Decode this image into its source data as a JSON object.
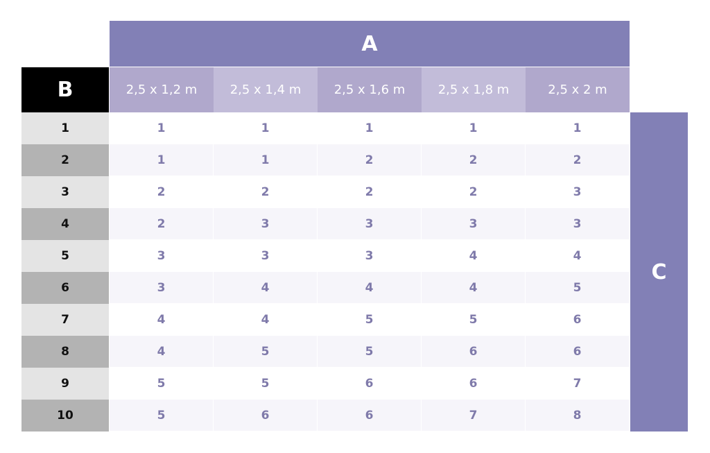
{
  "labels": {
    "a": "A",
    "b": "B",
    "c": "C"
  },
  "columns": [
    "2,5 x 1,2 m",
    "2,5 x 1,4 m",
    "2,5 x 1,6 m",
    "2,5 x 1,8 m",
    "2,5 x 2 m"
  ],
  "rows": [
    {
      "label": "1",
      "values": [
        "1",
        "1",
        "1",
        "1",
        "1"
      ]
    },
    {
      "label": "2",
      "values": [
        "1",
        "1",
        "2",
        "2",
        "2"
      ]
    },
    {
      "label": "3",
      "values": [
        "2",
        "2",
        "2",
        "2",
        "3"
      ]
    },
    {
      "label": "4",
      "values": [
        "2",
        "3",
        "3",
        "3",
        "3"
      ]
    },
    {
      "label": "5",
      "values": [
        "3",
        "3",
        "3",
        "4",
        "4"
      ]
    },
    {
      "label": "6",
      "values": [
        "3",
        "4",
        "4",
        "4",
        "5"
      ]
    },
    {
      "label": "7",
      "values": [
        "4",
        "4",
        "5",
        "5",
        "6"
      ]
    },
    {
      "label": "8",
      "values": [
        "4",
        "5",
        "5",
        "6",
        "6"
      ]
    },
    {
      "label": "9",
      "values": [
        "5",
        "5",
        "6",
        "6",
        "7"
      ]
    },
    {
      "label": "10",
      "values": [
        "5",
        "6",
        "6",
        "7",
        "8"
      ]
    }
  ],
  "colors": {
    "accent": "#8280b6",
    "header_odd": "#b0a8cc",
    "header_even": "#c2bcd9",
    "value_text": "#7f7aaa"
  }
}
